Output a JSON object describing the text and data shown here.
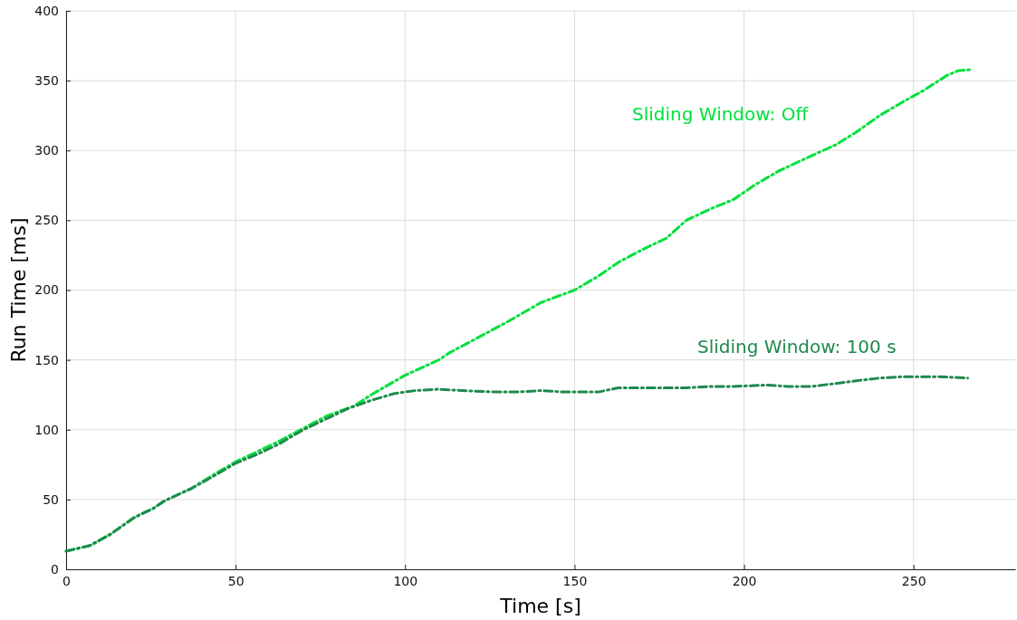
{
  "chart_data": {
    "type": "line",
    "xlabel": "Time [s]",
    "ylabel": "Run Time [ms]",
    "xlim": [
      0,
      280
    ],
    "ylim": [
      0,
      400
    ],
    "xticks": [
      0,
      50,
      100,
      150,
      200,
      250
    ],
    "yticks": [
      0,
      50,
      100,
      150,
      200,
      250,
      300,
      350,
      400
    ],
    "grid": true,
    "legend": false,
    "line_style": "dashed",
    "marker": "none",
    "series": [
      {
        "name": "Sliding Window: Off",
        "color": "#00e03c",
        "x": [
          0,
          7,
          13,
          20,
          26,
          29,
          37,
          43,
          50,
          57,
          63,
          70,
          77,
          85,
          90,
          95,
          100,
          110,
          113,
          120,
          130,
          140,
          150,
          157,
          163,
          170,
          177,
          183,
          190,
          197,
          203,
          210,
          217,
          227,
          233,
          240,
          247,
          253,
          260,
          263,
          267
        ],
        "values": [
          13,
          17,
          25,
          37,
          44,
          49,
          58,
          67,
          77,
          85,
          92,
          101,
          110,
          117,
          125,
          132,
          139,
          150,
          155,
          164,
          177,
          191,
          200,
          210,
          220,
          229,
          237,
          250,
          258,
          265,
          275,
          285,
          293,
          304,
          313,
          325,
          335,
          343,
          354,
          357,
          358
        ]
      },
      {
        "name": "Sliding Window: 100 s",
        "color": "#1e8a4c",
        "x": [
          0,
          7,
          13,
          20,
          26,
          29,
          37,
          43,
          50,
          57,
          63,
          70,
          77,
          83,
          90,
          97,
          103,
          110,
          117,
          127,
          133,
          140,
          147,
          157,
          163,
          170,
          177,
          183,
          190,
          197,
          207,
          213,
          220,
          230,
          233,
          240,
          247,
          257,
          266
        ],
        "values": [
          13,
          17,
          25,
          37,
          44,
          49,
          58,
          66,
          76,
          83,
          90,
          100,
          108,
          115,
          121,
          126,
          128,
          129,
          128,
          127,
          127,
          128,
          127,
          127,
          130,
          130,
          130,
          130,
          131,
          131,
          132,
          131,
          131,
          134,
          135,
          137,
          138,
          138,
          137
        ]
      }
    ]
  }
}
